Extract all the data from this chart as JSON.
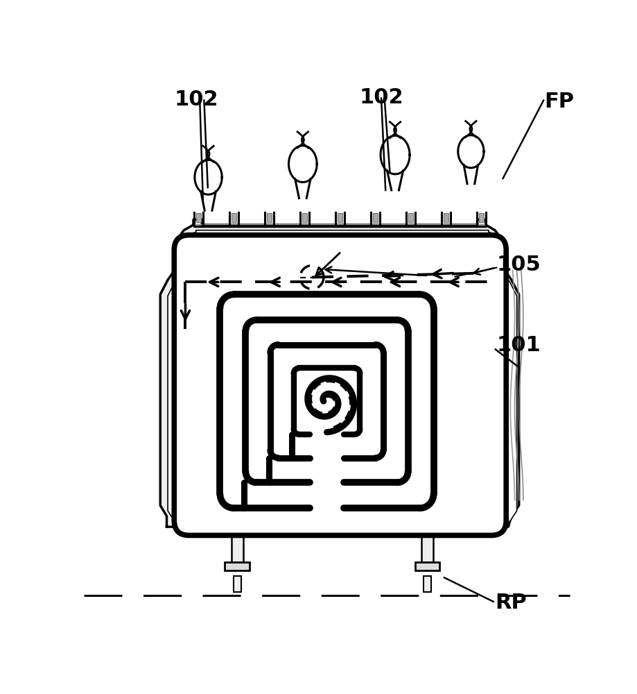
{
  "bg_color": "#ffffff",
  "line_color": "#000000",
  "label_102_left": "102",
  "label_102_center": "102",
  "label_FP": "FP",
  "label_105": "105",
  "label_101": "101",
  "label_RP": "RP",
  "label_fontsize": 22,
  "fig_width": 9.2,
  "fig_height": 10.0,
  "dpi": 100
}
